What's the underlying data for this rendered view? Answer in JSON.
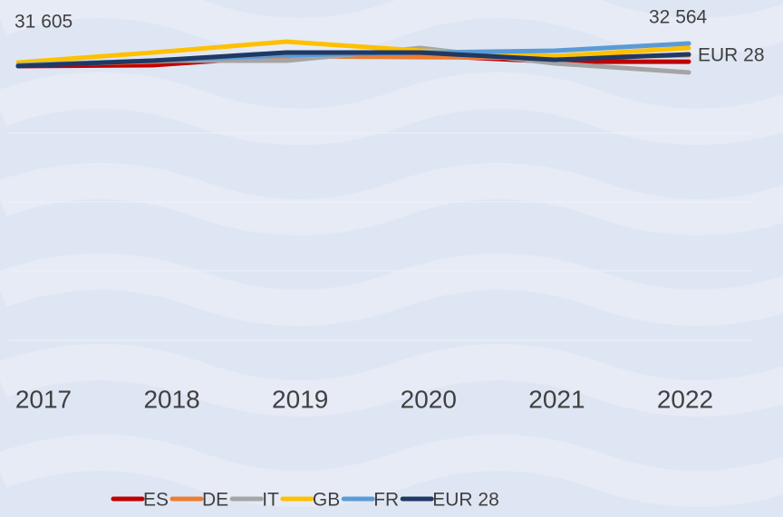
{
  "chart_data": {
    "type": "line",
    "categories": [
      "2017",
      "2018",
      "2019",
      "2020",
      "2021",
      "2022"
    ],
    "series": [
      {
        "name": "ES",
        "color": "#c00000",
        "values": [
          31605,
          31680,
          32420,
          32490,
          31970,
          31970
        ]
      },
      {
        "name": "DE",
        "color": "#ed7d31",
        "values": [
          31680,
          31970,
          32420,
          32340,
          32270,
          32490
        ]
      },
      {
        "name": "IT",
        "color": "#a5a5a5",
        "values": [
          31680,
          32050,
          32050,
          33080,
          31830,
          31090
        ]
      },
      {
        "name": "GB",
        "color": "#ffc000",
        "values": [
          31900,
          32710,
          33600,
          32860,
          32420,
          33080
        ]
      },
      {
        "name": "FR",
        "color": "#5b9bd5",
        "values": [
          31680,
          32050,
          32490,
          32710,
          32860,
          33450
        ]
      },
      {
        "name": "EUR 28",
        "color": "#203864",
        "values": [
          31605,
          32050,
          32710,
          32710,
          32120,
          32564
        ],
        "value_labels": [
          "31 605",
          null,
          null,
          null,
          null,
          "32 564"
        ]
      }
    ]
  }
}
